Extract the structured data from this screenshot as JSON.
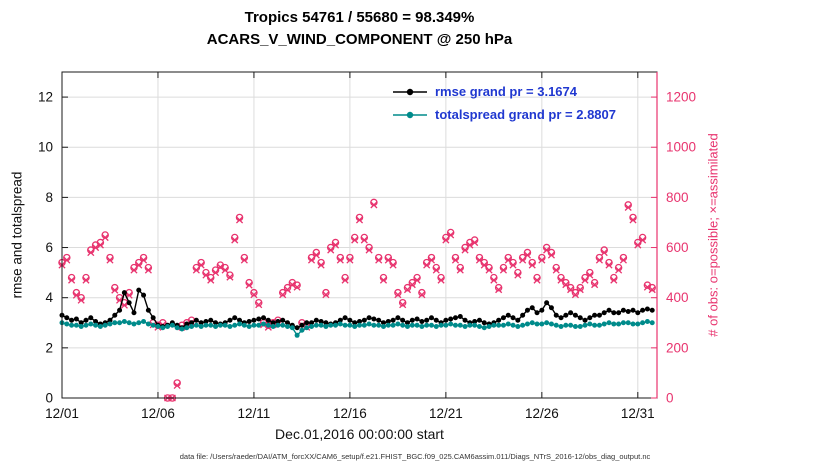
{
  "figure": {
    "footer": "data file: /Users/raeder/DAI/ATM_forcXX/CAM6_setup/f.e21.FHIST_BGC.f09_025.CAM6assim.011/Diags_NTrS_2016-12/obs_diag_output.nc"
  },
  "chart_data": {
    "type": "line",
    "title": "Tropics 54761 / 55680 = 98.349%",
    "subtitle": "ACARS_V_WIND_COMPONENT @ 250 hPa",
    "xlabel": "Dec.01,2016 00:00:00 start",
    "ylabel_left": "rmse and totalspread",
    "ylabel_right": "# of obs: o=possible; ×=assimilated",
    "x_range": [
      0,
      31
    ],
    "x_start_day": 0,
    "x_step_day": 0.25,
    "x_ticks": {
      "positions": [
        0,
        5,
        10,
        15,
        20,
        25,
        30
      ],
      "labels": [
        "12/01",
        "12/06",
        "12/11",
        "12/16",
        "12/21",
        "12/26",
        "12/31"
      ]
    },
    "y_left": {
      "min": 0,
      "max": 13,
      "ticks": [
        0,
        2,
        4,
        6,
        8,
        10,
        12
      ]
    },
    "y_right": {
      "min": 0,
      "max": 1300,
      "ticks": [
        0,
        200,
        400,
        600,
        800,
        1000,
        1200
      ]
    },
    "grid": true,
    "legend_position": "top-center-inside",
    "colors": {
      "rmse": "#000000",
      "totalspread": "#008b8b",
      "obs": "#e8336e",
      "legend_text": "#2038d0"
    },
    "series": [
      {
        "name": "rmse grand pr = 3.1674",
        "color": "#000000",
        "marker": "dot",
        "values": [
          3.3,
          3.2,
          3.1,
          3.15,
          3.0,
          3.1,
          3.2,
          3.05,
          2.95,
          3.0,
          3.1,
          3.3,
          3.5,
          4.2,
          3.8,
          3.4,
          4.3,
          4.1,
          3.5,
          3.2,
          2.9,
          2.85,
          2.9,
          3.0,
          2.9,
          2.8,
          2.95,
          3.0,
          3.1,
          3.0,
          3.05,
          3.1,
          3.0,
          2.95,
          3.0,
          3.1,
          3.2,
          3.1,
          3.0,
          3.05,
          3.1,
          3.15,
          3.2,
          3.1,
          3.0,
          3.05,
          3.1,
          3.0,
          2.9,
          2.8,
          2.9,
          3.0,
          3.0,
          3.1,
          3.05,
          3.0,
          2.95,
          3.0,
          3.1,
          3.2,
          3.1,
          3.0,
          3.05,
          3.1,
          3.2,
          3.15,
          3.1,
          3.0,
          3.05,
          3.1,
          3.2,
          3.1,
          3.0,
          3.1,
          3.15,
          3.05,
          3.1,
          3.2,
          3.1,
          3.0,
          3.1,
          3.15,
          3.2,
          3.25,
          3.1,
          3.0,
          3.05,
          3.1,
          3.0,
          2.95,
          3.0,
          3.1,
          3.2,
          3.3,
          3.2,
          3.1,
          3.3,
          3.5,
          3.6,
          3.4,
          3.5,
          3.8,
          3.6,
          3.3,
          3.2,
          3.3,
          3.4,
          3.3,
          3.2,
          3.1,
          3.2,
          3.3,
          3.3,
          3.4,
          3.5,
          3.4,
          3.4,
          3.5,
          3.45,
          3.5,
          3.4,
          3.5,
          3.55,
          3.5
        ]
      },
      {
        "name": "totalspread grand pr = 2.8807",
        "color": "#008b8b",
        "marker": "dot",
        "values": [
          3.0,
          2.95,
          2.9,
          2.9,
          2.85,
          2.9,
          2.95,
          2.9,
          2.85,
          2.9,
          2.95,
          3.0,
          3.0,
          3.05,
          3.0,
          2.95,
          3.0,
          3.05,
          2.95,
          2.9,
          2.85,
          2.8,
          2.85,
          2.9,
          2.8,
          2.75,
          2.8,
          2.85,
          2.9,
          2.85,
          2.9,
          2.9,
          2.85,
          2.9,
          2.9,
          2.85,
          2.9,
          2.95,
          2.9,
          2.85,
          2.9,
          2.9,
          2.95,
          2.9,
          2.85,
          2.9,
          2.9,
          2.85,
          2.8,
          2.5,
          2.7,
          2.8,
          2.85,
          2.9,
          2.9,
          2.85,
          2.9,
          2.9,
          2.95,
          2.9,
          2.9,
          2.85,
          2.9,
          2.9,
          2.95,
          2.9,
          2.9,
          2.85,
          2.9,
          2.9,
          2.95,
          2.9,
          2.85,
          2.9,
          2.9,
          2.85,
          2.9,
          2.9,
          2.85,
          2.9,
          2.9,
          2.95,
          2.9,
          2.9,
          2.85,
          2.9,
          2.9,
          2.85,
          2.8,
          2.85,
          2.9,
          2.9,
          2.9,
          2.95,
          2.9,
          2.85,
          2.9,
          2.95,
          3.0,
          2.95,
          2.95,
          3.0,
          2.95,
          2.9,
          2.85,
          2.9,
          2.9,
          2.85,
          2.85,
          2.9,
          2.95,
          2.9,
          2.9,
          2.95,
          3.0,
          2.95,
          2.95,
          3.0,
          3.0,
          2.95,
          2.95,
          3.0,
          3.05,
          3.0
        ]
      }
    ],
    "obs_series": [
      {
        "name": "possible",
        "marker": "o",
        "color": "#e8336e",
        "values": [
          540,
          560,
          480,
          420,
          400,
          480,
          590,
          610,
          620,
          650,
          560,
          440,
          400,
          380,
          420,
          520,
          540,
          560,
          520,
          300,
          290,
          300,
          0,
          0,
          60,
          290,
          300,
          310,
          520,
          540,
          500,
          480,
          510,
          530,
          520,
          490,
          640,
          720,
          560,
          460,
          420,
          380,
          300,
          290,
          300,
          310,
          420,
          440,
          460,
          450,
          300,
          290,
          560,
          580,
          540,
          420,
          600,
          620,
          560,
          480,
          560,
          640,
          720,
          640,
          600,
          780,
          560,
          480,
          560,
          540,
          420,
          380,
          440,
          460,
          480,
          420,
          540,
          560,
          520,
          480,
          640,
          660,
          560,
          520,
          600,
          620,
          630,
          560,
          540,
          520,
          480,
          440,
          520,
          560,
          540,
          500,
          560,
          580,
          540,
          480,
          560,
          600,
          580,
          520,
          480,
          460,
          440,
          420,
          440,
          480,
          500,
          460,
          560,
          590,
          540,
          480,
          520,
          560,
          770,
          720,
          620,
          640,
          450,
          440
        ]
      },
      {
        "name": "assimilated",
        "marker": "x",
        "color": "#e8336e",
        "values": [
          530,
          550,
          470,
          410,
          390,
          470,
          580,
          600,
          610,
          640,
          550,
          430,
          390,
          370,
          410,
          510,
          530,
          550,
          510,
          292,
          282,
          292,
          0,
          0,
          50,
          282,
          292,
          302,
          510,
          530,
          490,
          470,
          500,
          522,
          510,
          482,
          630,
          710,
          550,
          450,
          412,
          372,
          292,
          282,
          292,
          302,
          412,
          432,
          452,
          442,
          292,
          282,
          550,
          570,
          530,
          412,
          590,
          610,
          550,
          470,
          550,
          630,
          710,
          630,
          590,
          770,
          550,
          470,
          550,
          530,
          412,
          372,
          432,
          452,
          470,
          412,
          530,
          550,
          510,
          470,
          630,
          650,
          550,
          510,
          590,
          610,
          620,
          550,
          530,
          510,
          470,
          432,
          510,
          550,
          530,
          490,
          550,
          570,
          530,
          470,
          550,
          590,
          570,
          510,
          470,
          452,
          432,
          412,
          432,
          470,
          490,
          452,
          550,
          580,
          530,
          470,
          510,
          550,
          760,
          710,
          610,
          630,
          442,
          432
        ]
      }
    ]
  }
}
